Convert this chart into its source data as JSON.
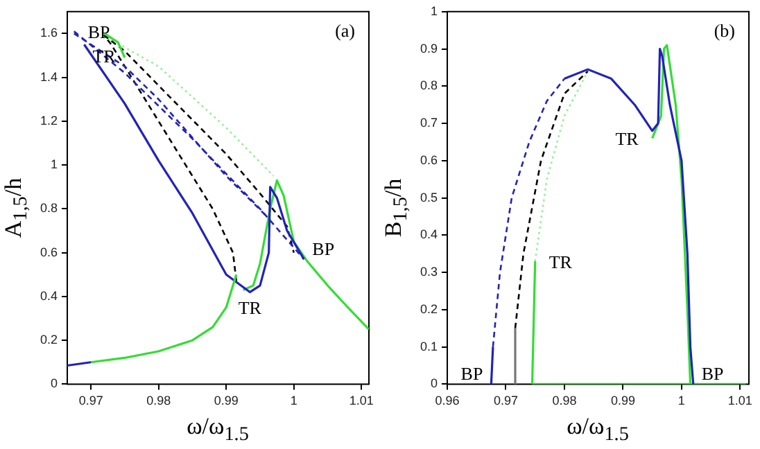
{
  "chart_data": [
    {
      "type": "line",
      "xlabel": "ω/ω$_{1.5}$",
      "ylabel": "A$_{1,5}$/h",
      "grid": false,
      "marker": "none",
      "xlim": [
        0.9665,
        1.0111
      ],
      "ylim": [
        0,
        1.7
      ],
      "xticks": [
        0.97,
        0.98,
        0.99,
        1,
        1.01
      ],
      "yticks": [
        0,
        0.2,
        0.4,
        0.6,
        0.8,
        1,
        1.2,
        1.4,
        1.6
      ],
      "series": [
        {
          "color": "#2222bb",
          "line_style": "solid",
          "x": [
            0.9665,
            0.97
          ],
          "values": [
            0.085,
            0.1
          ]
        },
        {
          "color": "#33dd33",
          "line_style": "solid",
          "x": [
            0.97,
            0.975,
            0.98,
            0.985,
            0.988,
            0.99,
            0.991,
            0.9915
          ],
          "values": [
            0.1,
            0.12,
            0.15,
            0.2,
            0.26,
            0.35,
            0.45,
            0.5
          ]
        },
        {
          "color": "#2222bb",
          "line_style": "solid",
          "x": [
            0.969,
            0.975,
            0.98,
            0.985,
            0.99,
            0.9935,
            0.995,
            0.9963,
            0.9965,
            0.9975,
            0.999,
            1.0015
          ],
          "values": [
            1.55,
            1.28,
            1.02,
            0.78,
            0.5,
            0.42,
            0.45,
            0.6,
            0.9,
            0.85,
            0.7,
            0.57
          ]
        },
        {
          "color": "#33dd33",
          "line_style": "solid",
          "x": [
            0.9925,
            0.994,
            0.995,
            0.9965,
            0.9975,
            0.9985,
            1.0,
            1.002,
            1.005,
            1.008,
            1.0111
          ],
          "values": [
            0.43,
            0.45,
            0.55,
            0.8,
            0.93,
            0.86,
            0.65,
            0.56,
            0.45,
            0.35,
            0.25
          ]
        },
        {
          "color": "#33dd33",
          "line_style": "solid",
          "x": [
            0.972,
            0.974,
            0.975
          ],
          "values": [
            1.6,
            1.56,
            1.49
          ]
        },
        {
          "color": "#2222bb",
          "line_style": "dashed",
          "x": [
            0.9675,
            0.975,
            0.985,
            0.995,
            1.0015
          ],
          "values": [
            1.61,
            1.42,
            1.12,
            0.8,
            0.57
          ]
        },
        {
          "color": "#2222bb",
          "line_style": "dashed",
          "x": [
            0.9675,
            0.975,
            0.98,
            0.99,
            0.9965
          ],
          "values": [
            1.6,
            1.45,
            1.3,
            0.95,
            0.75
          ]
        },
        {
          "color": "#000000",
          "line_style": "dashed",
          "x": [
            0.9915,
            0.991,
            0.988,
            0.984,
            0.978,
            0.973,
            0.972,
            0.975,
            0.982,
            0.99,
            0.995,
            0.999,
            1.0
          ],
          "values": [
            0.47,
            0.6,
            0.8,
            1.0,
            1.3,
            1.55,
            1.59,
            1.52,
            1.3,
            1.05,
            0.87,
            0.72,
            0.6
          ]
        },
        {
          "color": "#99ee99",
          "line_style": "dotted",
          "x": [
            0.9725,
            0.98,
            0.99,
            0.997
          ],
          "values": [
            1.58,
            1.45,
            1.17,
            0.95
          ]
        }
      ],
      "annotations": [
        "(a)",
        {
          "text": "BP",
          "x": 0.9675,
          "y": 1.61
        },
        {
          "text": "TR",
          "x": 0.969,
          "y": 1.55
        },
        {
          "text": "BP",
          "x": 1.0015,
          "y": 0.57
        },
        {
          "text": "TR",
          "x": 0.9935,
          "y": 0.42
        }
      ]
    },
    {
      "type": "line",
      "xlabel": "ω/ω$_{1.5}$",
      "ylabel": "B$_{1,5}$/h",
      "grid": false,
      "marker": "none",
      "xlim": [
        0.96,
        1.0115
      ],
      "ylim": [
        0,
        1
      ],
      "xticks": [
        0.96,
        0.97,
        0.98,
        0.99,
        1,
        1.01
      ],
      "yticks": [
        0,
        0.1,
        0.2,
        0.3,
        0.4,
        0.5,
        0.6,
        0.7,
        0.8,
        0.9,
        1
      ],
      "series": [
        {
          "color": "#2222bb",
          "line_style": "solid",
          "x": [
            0.9675,
            0.9678
          ],
          "values": [
            0,
            0.1
          ]
        },
        {
          "color": "#2222bb",
          "line_style": "dashed",
          "x": [
            0.9678,
            0.969,
            0.971,
            0.974,
            0.977,
            0.98
          ],
          "values": [
            0.1,
            0.3,
            0.5,
            0.65,
            0.76,
            0.82
          ]
        },
        {
          "color": "#2222bb",
          "line_style": "solid",
          "x": [
            0.98,
            0.984,
            0.988,
            0.992,
            0.995,
            0.996,
            0.9963,
            0.9967,
            0.998,
            1.0,
            1.001,
            1.0015,
            1.002
          ],
          "values": [
            0.82,
            0.845,
            0.82,
            0.75,
            0.68,
            0.7,
            0.9,
            0.88,
            0.75,
            0.6,
            0.35,
            0.1,
            0
          ]
        },
        {
          "color": "#777777",
          "line_style": "solid",
          "x": [
            0.9715,
            0.9716
          ],
          "values": [
            0,
            0.15
          ]
        },
        {
          "color": "#000000",
          "line_style": "dashed",
          "x": [
            0.9716,
            0.973,
            0.976,
            0.98,
            0.984
          ],
          "values": [
            0.15,
            0.35,
            0.6,
            0.78,
            0.84
          ]
        },
        {
          "color": "#99ee99",
          "line_style": "dotted",
          "x": [
            0.975,
            0.977,
            0.98,
            0.984
          ],
          "values": [
            0.33,
            0.55,
            0.72,
            0.84
          ]
        },
        {
          "color": "#33dd33",
          "line_style": "solid",
          "x": [
            0.9745,
            0.975
          ],
          "values": [
            0,
            0.33
          ]
        },
        {
          "color": "#33dd33",
          "line_style": "solid",
          "x": [
            0.995,
            0.9965,
            0.997,
            0.9975,
            0.999,
            1.0,
            1.001,
            1.0015
          ],
          "values": [
            0.66,
            0.72,
            0.9,
            0.91,
            0.75,
            0.55,
            0.2,
            0
          ]
        },
        {
          "color": "#33dd33",
          "line_style": "solid",
          "x": [
            0.9745,
            1.011
          ],
          "values": [
            0,
            0
          ]
        }
      ],
      "annotations": [
        "(b)",
        {
          "text": "BP",
          "x": 0.9675,
          "y": 0
        },
        {
          "text": "BP",
          "x": 1.002,
          "y": 0
        },
        {
          "text": "TR",
          "x": 0.995,
          "y": 0.66
        },
        {
          "text": "TR",
          "x": 0.975,
          "y": 0.33
        }
      ]
    }
  ]
}
